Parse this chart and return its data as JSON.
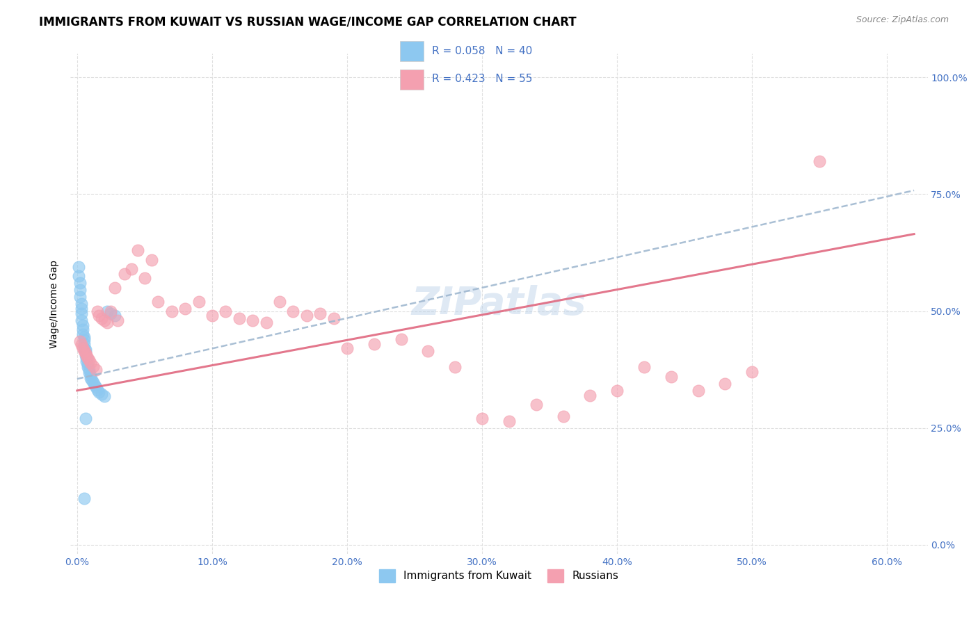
{
  "title": "IMMIGRANTS FROM KUWAIT VS RUSSIAN WAGE/INCOME GAP CORRELATION CHART",
  "source": "Source: ZipAtlas.com",
  "ylabel": "Wage/Income Gap",
  "legend_label1": "Immigrants from Kuwait",
  "legend_label2": "Russians",
  "x_ticks": [
    0.0,
    0.1,
    0.2,
    0.3,
    0.4,
    0.5,
    0.6
  ],
  "x_tick_labels": [
    "0.0%",
    "10.0%",
    "20.0%",
    "30.0%",
    "40.0%",
    "50.0%",
    "60.0%"
  ],
  "y_ticks": [
    0.0,
    0.25,
    0.5,
    0.75,
    1.0
  ],
  "y_tick_labels": [
    "0.0%",
    "25.0%",
    "50.0%",
    "75.0%",
    "100.0%"
  ],
  "xlim": [
    -0.005,
    0.63
  ],
  "ylim": [
    -0.02,
    1.05
  ],
  "color_blue": "#8DC8F0",
  "color_pink": "#F4A0B0",
  "watermark": "ZIPatlas",
  "blue_scatter_x": [
    0.001,
    0.001,
    0.002,
    0.002,
    0.002,
    0.003,
    0.003,
    0.003,
    0.003,
    0.004,
    0.004,
    0.004,
    0.005,
    0.005,
    0.005,
    0.005,
    0.006,
    0.006,
    0.006,
    0.007,
    0.007,
    0.008,
    0.008,
    0.009,
    0.009,
    0.01,
    0.01,
    0.011,
    0.012,
    0.013,
    0.014,
    0.015,
    0.016,
    0.018,
    0.02,
    0.022,
    0.025,
    0.028,
    0.005,
    0.006
  ],
  "blue_scatter_y": [
    0.595,
    0.575,
    0.56,
    0.545,
    0.53,
    0.515,
    0.505,
    0.495,
    0.48,
    0.47,
    0.46,
    0.45,
    0.445,
    0.438,
    0.43,
    0.42,
    0.418,
    0.412,
    0.405,
    0.4,
    0.393,
    0.387,
    0.38,
    0.375,
    0.368,
    0.363,
    0.357,
    0.352,
    0.347,
    0.342,
    0.337,
    0.332,
    0.327,
    0.322,
    0.318,
    0.5,
    0.495,
    0.49,
    0.1,
    0.27
  ],
  "pink_scatter_x": [
    0.002,
    0.003,
    0.004,
    0.005,
    0.006,
    0.007,
    0.008,
    0.009,
    0.01,
    0.012,
    0.014,
    0.015,
    0.016,
    0.018,
    0.02,
    0.022,
    0.025,
    0.028,
    0.03,
    0.035,
    0.04,
    0.045,
    0.05,
    0.055,
    0.06,
    0.07,
    0.08,
    0.09,
    0.1,
    0.11,
    0.12,
    0.13,
    0.14,
    0.15,
    0.16,
    0.17,
    0.18,
    0.19,
    0.2,
    0.22,
    0.24,
    0.26,
    0.28,
    0.3,
    0.32,
    0.34,
    0.36,
    0.38,
    0.4,
    0.42,
    0.44,
    0.46,
    0.48,
    0.5,
    0.55
  ],
  "pink_scatter_y": [
    0.435,
    0.428,
    0.42,
    0.415,
    0.41,
    0.405,
    0.4,
    0.395,
    0.39,
    0.382,
    0.375,
    0.5,
    0.49,
    0.485,
    0.48,
    0.475,
    0.5,
    0.55,
    0.48,
    0.58,
    0.59,
    0.63,
    0.57,
    0.61,
    0.52,
    0.5,
    0.505,
    0.52,
    0.49,
    0.5,
    0.485,
    0.48,
    0.475,
    0.52,
    0.5,
    0.49,
    0.495,
    0.485,
    0.42,
    0.43,
    0.44,
    0.415,
    0.38,
    0.27,
    0.265,
    0.3,
    0.275,
    0.32,
    0.33,
    0.38,
    0.36,
    0.33,
    0.345,
    0.37,
    0.82
  ],
  "grid_color": "#e0e0e0",
  "title_fontsize": 12,
  "axis_label_fontsize": 10,
  "tick_fontsize": 10,
  "watermark_fontsize": 40,
  "watermark_color": "#b8cfe8",
  "watermark_alpha": 0.45,
  "blue_line_color": "#a0c8e8",
  "pink_line_color": "#e8708a",
  "blue_line_intercept": 0.355,
  "blue_line_slope": 0.65,
  "pink_line_intercept": 0.33,
  "pink_line_slope": 0.54
}
